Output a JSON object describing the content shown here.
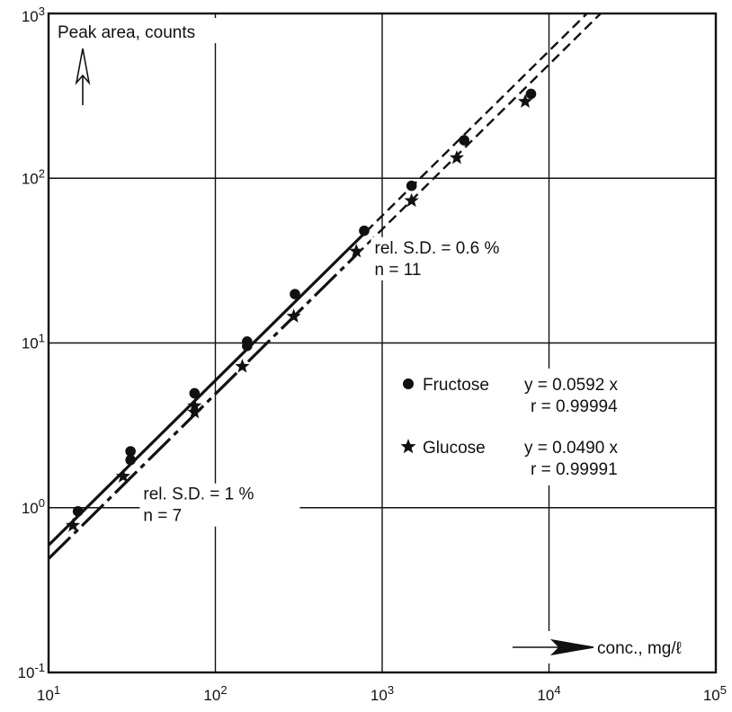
{
  "chart_data": {
    "type": "scatter",
    "title": "",
    "xlabel": "conc., mg/ℓ",
    "ylabel": "Peak area, counts",
    "xscale": "log",
    "yscale": "log",
    "xlim": [
      10,
      100000
    ],
    "ylim": [
      0.1,
      1000
    ],
    "grid": true,
    "x_ticks": [
      {
        "value": 10,
        "mantissa": "10",
        "exp": "1"
      },
      {
        "value": 100,
        "mantissa": "10",
        "exp": "2"
      },
      {
        "value": 1000,
        "mantissa": "10",
        "exp": "3"
      },
      {
        "value": 10000,
        "mantissa": "10",
        "exp": "4"
      },
      {
        "value": 100000,
        "mantissa": "10",
        "exp": "5"
      }
    ],
    "y_ticks": [
      {
        "value": 0.1,
        "mantissa": "10",
        "exp": "-1"
      },
      {
        "value": 1,
        "mantissa": "10",
        "exp": "0"
      },
      {
        "value": 10,
        "mantissa": "10",
        "exp": "1"
      },
      {
        "value": 100,
        "mantissa": "10",
        "exp": "2"
      },
      {
        "value": 1000,
        "mantissa": "10",
        "exp": "3"
      }
    ],
    "series": [
      {
        "name": "Fructose",
        "marker": "circle",
        "equation": "y = 0.0592 x",
        "r": "r = 0.99994",
        "slope": 0.0592,
        "fit_solid_range": [
          10,
          800
        ],
        "fit_dashed_range": [
          800,
          22000
        ],
        "points": [
          {
            "x": 15,
            "y": 0.95
          },
          {
            "x": 31,
            "y": 2.2
          },
          {
            "x": 31,
            "y": 1.95
          },
          {
            "x": 75,
            "y": 4.95
          },
          {
            "x": 155,
            "y": 10.2
          },
          {
            "x": 155,
            "y": 9.6
          },
          {
            "x": 300,
            "y": 19.8
          },
          {
            "x": 780,
            "y": 48
          },
          {
            "x": 1500,
            "y": 90
          },
          {
            "x": 3100,
            "y": 170
          },
          {
            "x": 7800,
            "y": 325
          }
        ]
      },
      {
        "name": "Glucose",
        "marker": "star",
        "equation": "y = 0.0490 x",
        "r": "r = 0.99991",
        "slope": 0.049,
        "fit_solid_range": [
          10,
          700
        ],
        "fit_dashed_range": [
          700,
          22000
        ],
        "points": [
          {
            "x": 14,
            "y": 0.78
          },
          {
            "x": 28,
            "y": 1.55
          },
          {
            "x": 75,
            "y": 3.8
          },
          {
            "x": 75,
            "y": 4.15
          },
          {
            "x": 145,
            "y": 7.2
          },
          {
            "x": 295,
            "y": 14.5
          },
          {
            "x": 700,
            "y": 36
          },
          {
            "x": 1500,
            "y": 73
          },
          {
            "x": 2800,
            "y": 133
          },
          {
            "x": 7200,
            "y": 292
          }
        ]
      }
    ],
    "annotations": [
      {
        "id": "sd-high",
        "line1": "rel. S.D. = 0.6 %",
        "line2": "n = 11",
        "x": 900,
        "y": 35
      },
      {
        "id": "sd-low",
        "line1": "rel. S.D. = 1 %",
        "line2": "n = 7",
        "x": 37,
        "y": 1.12
      }
    ]
  }
}
